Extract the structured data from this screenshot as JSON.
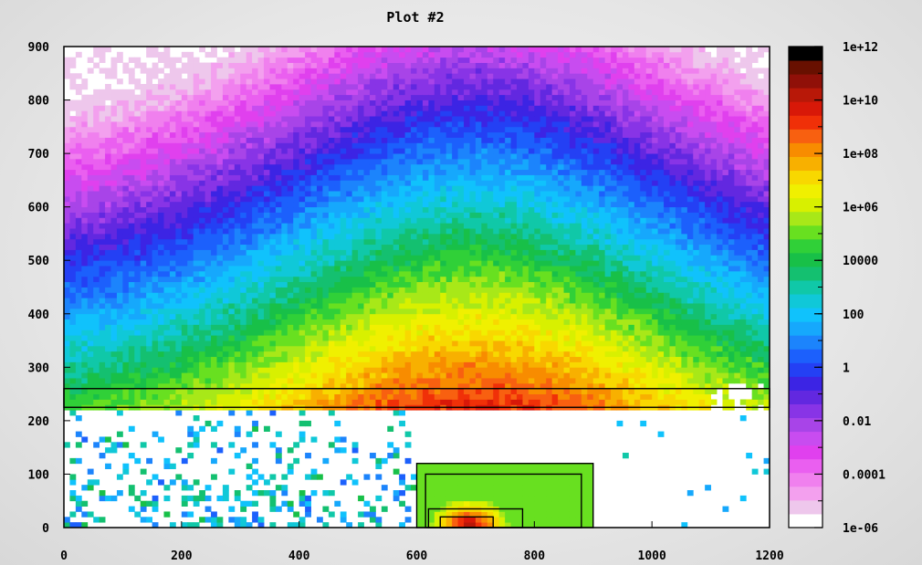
{
  "title": "Plot #2",
  "chart_data": {
    "type": "heatmap",
    "title": "Plot #2",
    "xlabel": "",
    "ylabel": "",
    "xlim": [
      0,
      1200
    ],
    "ylim": [
      0,
      900
    ],
    "x_ticks": [
      "0",
      "200",
      "400",
      "600",
      "800",
      "1000",
      "1200"
    ],
    "y_ticks": [
      "0",
      "100",
      "200",
      "300",
      "400",
      "500",
      "600",
      "700",
      "800",
      "900"
    ],
    "colorbar": {
      "scale": "log",
      "range": [
        1e-06,
        1000000000000.0
      ],
      "tick_labels": [
        "1e+12",
        "1e+10",
        "1e+08",
        "1e+06",
        "10000",
        "100",
        "1",
        "0.01",
        "0.0001",
        "1e-06"
      ],
      "colors": [
        "#ffffff",
        "#eec7ec",
        "#f3a0ee",
        "#f080ee",
        "#ea5ff0",
        "#e040ee",
        "#c84cf0",
        "#a844e8",
        "#8834e6",
        "#6228e0",
        "#3c24e4",
        "#2440f4",
        "#1c60fc",
        "#1c84fc",
        "#16a8fc",
        "#10c2fc",
        "#10c8d8",
        "#10c8a8",
        "#14c070",
        "#18c048",
        "#30d038",
        "#68e020",
        "#a8e818",
        "#d8f000",
        "#f0f000",
        "#f8d800",
        "#f8b000",
        "#f88c00",
        "#f86010",
        "#f03008",
        "#d81808",
        "#b81808",
        "#901008",
        "#681000",
        "#000000"
      ]
    },
    "regions": [
      {
        "name": "band",
        "x": [
          0,
          1200
        ],
        "y": [
          225,
          260
        ]
      },
      {
        "name": "box-outer",
        "x": [
          600,
          900
        ],
        "y": [
          0,
          120
        ]
      },
      {
        "name": "box-inner",
        "x": [
          615,
          880
        ],
        "y": [
          0,
          100
        ]
      },
      {
        "name": "box-small",
        "x": [
          620,
          780
        ],
        "y": [
          0,
          35
        ]
      },
      {
        "name": "box-tiny",
        "x": [
          640,
          730
        ],
        "y": [
          0,
          20
        ]
      }
    ],
    "grid": false,
    "legend": "colorbar-right"
  }
}
